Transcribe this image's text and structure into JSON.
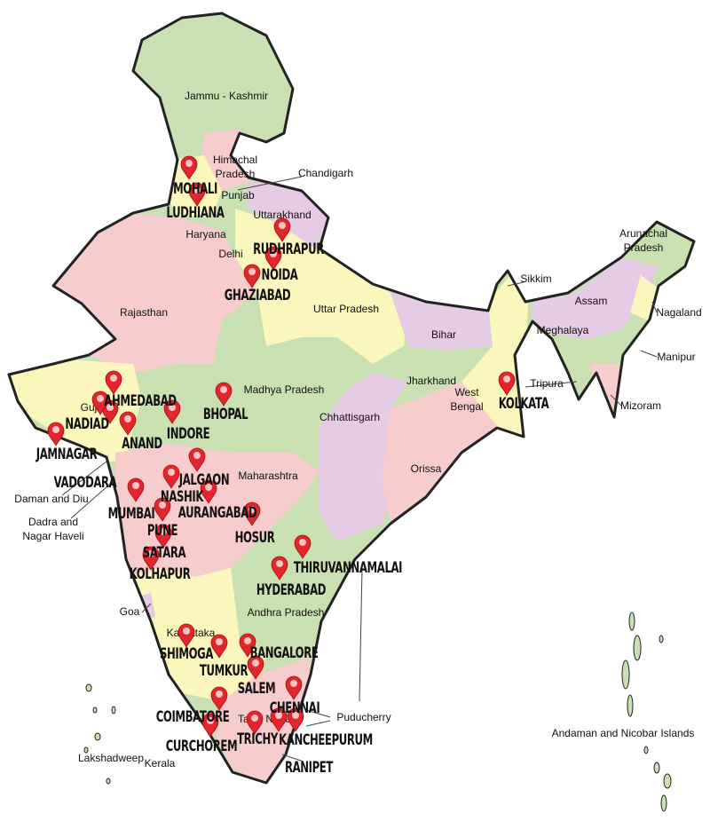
{
  "map": {
    "colors": {
      "green": "#c9e0b3",
      "pink": "#f7cccc",
      "yellow": "#fbf6bc",
      "purple": "#e6cbe6",
      "marker": "#e3262b",
      "border": "#222222"
    },
    "states": [
      {
        "name": "Jammu - Kashmir"
      },
      {
        "name": "Himachal"
      },
      {
        "name": "Pradesh"
      },
      {
        "name": "Chandigarh"
      },
      {
        "name": "Punjab"
      },
      {
        "name": "Haryana"
      },
      {
        "name": "Uttarakhand"
      },
      {
        "name": "Delhi"
      },
      {
        "name": "Uttar Pradesh"
      },
      {
        "name": "Rajasthan"
      },
      {
        "name": "Sikkim"
      },
      {
        "name": "Arunachal"
      },
      {
        "name": "Pradesh"
      },
      {
        "name": "Assam"
      },
      {
        "name": "Nagaland"
      },
      {
        "name": "Meghalaya"
      },
      {
        "name": "Manipur"
      },
      {
        "name": "Bihar"
      },
      {
        "name": "Tripura"
      },
      {
        "name": "Mizoram"
      },
      {
        "name": "Jharkhand"
      },
      {
        "name": "West"
      },
      {
        "name": "Bengal"
      },
      {
        "name": "Guj"
      },
      {
        "name": "Madhya Pradesh"
      },
      {
        "name": "Chhattisgarh"
      },
      {
        "name": "Orissa"
      },
      {
        "name": "Daman and Diu"
      },
      {
        "name": "Dadra and"
      },
      {
        "name": "Nagar Haveli"
      },
      {
        "name": "Maharashtra"
      },
      {
        "name": "Andhra Pradesh"
      },
      {
        "name": "Goa"
      },
      {
        "name": "Karnataka"
      },
      {
        "name": "Tamil Nadu"
      },
      {
        "name": "Kerala"
      },
      {
        "name": "Puducherry"
      },
      {
        "name": "Lakshadweep"
      },
      {
        "name": "Andaman and Nicobar Islands"
      }
    ],
    "cities": [
      {
        "name": "MOHALI"
      },
      {
        "name": "LUDHIANA"
      },
      {
        "name": "RUDHRAPUR"
      },
      {
        "name": "NOIDA"
      },
      {
        "name": "GHAZIABAD"
      },
      {
        "name": "AHMEDABAD"
      },
      {
        "name": "NADIAD"
      },
      {
        "name": "ANAND"
      },
      {
        "name": "JAMNAGAR"
      },
      {
        "name": "VADODARA"
      },
      {
        "name": "INDORE"
      },
      {
        "name": "BHOPAL"
      },
      {
        "name": "JALGAON"
      },
      {
        "name": "NASHIK"
      },
      {
        "name": "MUMBAI"
      },
      {
        "name": "AURANGABAD"
      },
      {
        "name": "PUNE"
      },
      {
        "name": "SATARA"
      },
      {
        "name": "KOLHAPUR"
      },
      {
        "name": "HOSUR"
      },
      {
        "name": "THIRUVANNAMALAI"
      },
      {
        "name": "HYDERABAD"
      },
      {
        "name": "SHIMOGA"
      },
      {
        "name": "TUMKUR"
      },
      {
        "name": "BANGALORE"
      },
      {
        "name": "SALEM"
      },
      {
        "name": "CHENNAI"
      },
      {
        "name": "COIMBATORE"
      },
      {
        "name": "CURCHOREM"
      },
      {
        "name": "TRICHY"
      },
      {
        "name": "KANCHEEPURUM"
      },
      {
        "name": "RANIPET"
      },
      {
        "name": "KOLKATA"
      }
    ],
    "marker_icon": "map-pin-icon"
  }
}
